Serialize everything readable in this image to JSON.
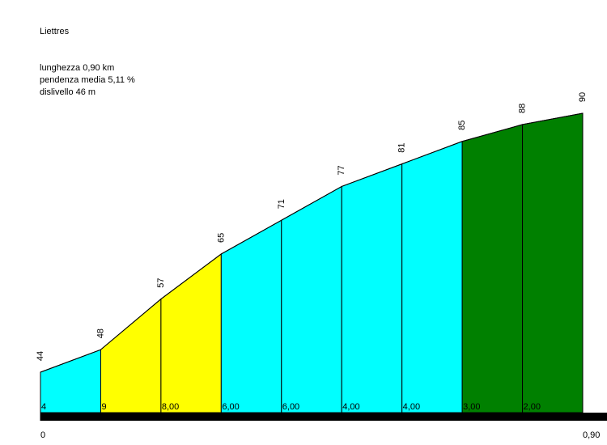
{
  "chart_data": {
    "type": "area",
    "title": "Liettres",
    "info": [
      "lunghezza 0,90 km",
      "pendenza media 5,11 %",
      "dislivello 46 m"
    ],
    "x": [
      0,
      0.1,
      0.2,
      0.3,
      0.4,
      0.5,
      0.6,
      0.7,
      0.8,
      0.9
    ],
    "values": [
      44,
      48,
      57,
      65,
      71,
      77,
      81,
      85,
      88,
      90
    ],
    "segments": {
      "values": [
        4,
        9,
        8,
        6,
        6,
        4,
        4,
        3,
        2
      ],
      "value_labels": [
        "4",
        "9",
        "8,00",
        "6,00",
        "6,00",
        "4,00",
        "4,00",
        "3,00",
        "2,00"
      ],
      "colors": [
        "#00ffff",
        "#ffff00",
        "#ffff00",
        "#00ffff",
        "#00ffff",
        "#00ffff",
        "#00ffff",
        "#008000",
        "#008000"
      ]
    },
    "xlim": [
      0,
      0.9
    ],
    "xticks": [
      0,
      {
        "value": 0.9,
        "label": "0,90"
      }
    ]
  }
}
